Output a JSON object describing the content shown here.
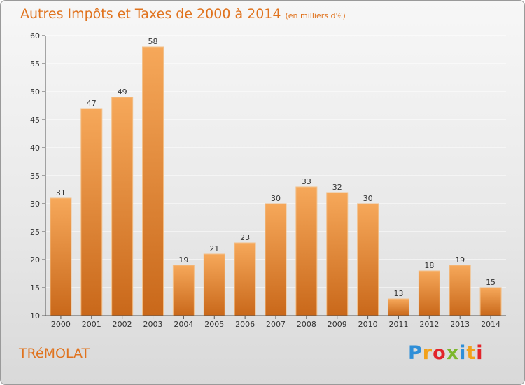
{
  "header": {
    "title": "Autres Impôts et Taxes de 2000 à 2014",
    "unit": "(en milliers d'€)"
  },
  "footer": {
    "commune": "TRéMOLAT",
    "logo": {
      "letters": [
        "P",
        "r",
        "o",
        "x",
        "i",
        "t",
        "i"
      ],
      "colors": [
        "#2f8fd8",
        "#f2a11a",
        "#e2242b",
        "#7cb72d",
        "#2f8fd8",
        "#f2a11a",
        "#e2242b"
      ]
    }
  },
  "colors": {
    "bar_top": "#f6a85a",
    "bar_bottom": "#c9681a",
    "bar_edge": "#f2bf88",
    "axis": "#555555",
    "text": "#333333",
    "grid": "#ffffff"
  },
  "chart_data": {
    "type": "bar",
    "categories": [
      "2000",
      "2001",
      "2002",
      "2003",
      "2004",
      "2005",
      "2006",
      "2007",
      "2008",
      "2009",
      "2010",
      "2011",
      "2012",
      "2013",
      "2014"
    ],
    "values": [
      31,
      47,
      49,
      58,
      19,
      21,
      23,
      30,
      33,
      32,
      30,
      13,
      18,
      19,
      15
    ],
    "ylim": [
      10,
      60
    ],
    "yticks": [
      10,
      15,
      20,
      25,
      30,
      35,
      40,
      45,
      50,
      55,
      60
    ],
    "grid": true,
    "data_labels": true
  }
}
